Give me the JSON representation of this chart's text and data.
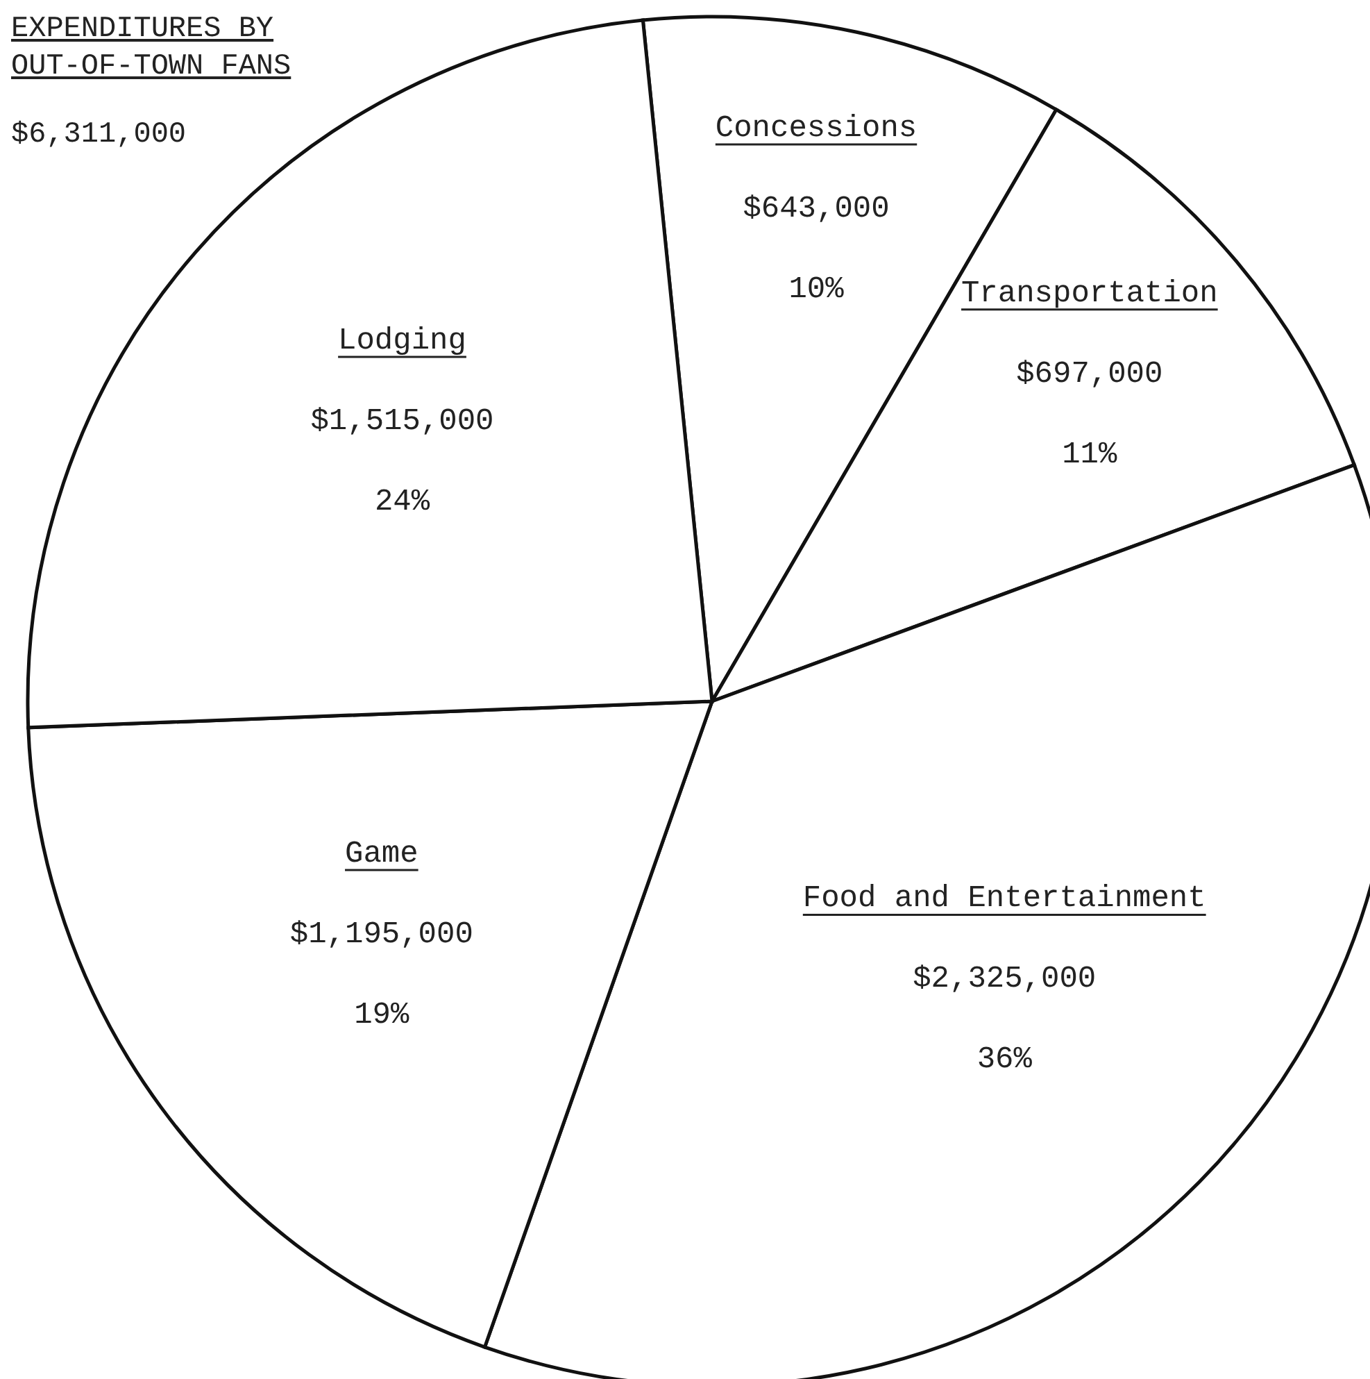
{
  "chart_data": {
    "type": "pie",
    "title": "EXPENDITURES BY\nOUT-OF-TOWN FANS",
    "subtitle": "$6,311,000",
    "categories": [
      "Concessions",
      "Transportation",
      "Food and Entertainment",
      "Game",
      "Lodging"
    ],
    "values": [
      10,
      11,
      36,
      19,
      24
    ],
    "colors": [
      "#ffffff",
      "#ffffff",
      "#ffffff",
      "#ffffff",
      "#ffffff"
    ],
    "value_labels": [
      "$643,000\n10%",
      "$697,000\n11%",
      "$2,325,000\n36%",
      "$1,195,000\n19%",
      "$1,515,000\n24%"
    ],
    "legend": false
  }
}
